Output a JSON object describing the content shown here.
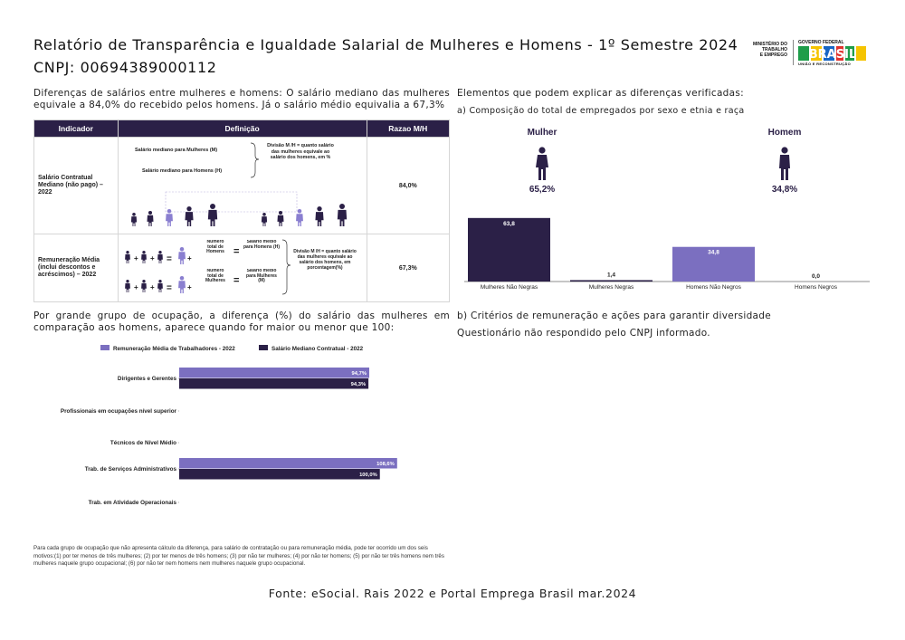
{
  "header": {
    "title_line1": "Relatório de Transparência e Igualdade Salarial de Mulheres e Homens - 1º Semestre 2024",
    "title_line2": "CNPJ: 00694389000112",
    "ministry": [
      "MINISTÉRIO DO",
      "TRABALHO",
      "E EMPREGO"
    ],
    "gov_federal": "GOVERNO FEDERAL",
    "gov_brasil": "BRASIL",
    "gov_union": "UNIÃO E RECONSTRUÇÃO"
  },
  "left_intro": "Diferenças de salários entre mulheres e homens: O salário mediano das mulheres equivale a 84,0% do recebido pelos homens. Já o salário médio equivalia a 67,3%",
  "indicator_table": {
    "headers": [
      "Indicador",
      "Definição",
      "Razao M/H"
    ],
    "rows": [
      {
        "name": "Salário Contratual Mediano (não pago) – 2022",
        "ratio": "84,0%",
        "def_women": "Salário mediano para Mulheres (M)",
        "def_men": "Salário mediano para Homens (H)",
        "def_division": "Divisão M /H = quanto salário das mulheres equivale ao salário dos homens, em %"
      },
      {
        "name": "Remuneração Média (inclui descontos e acréscimos) – 2022",
        "ratio": "67,3%",
        "def_total_men": "Número total de Homens",
        "def_total_women": "Número total de Mulheres",
        "def_avg_men": "Salário médio para Homens (H)",
        "def_avg_women": "Salário médio para Mulheres (M)",
        "def_division": "Divisão M /H = quanto salário das mulheres equivale ao salário dos homens, em porcentagem(%)"
      }
    ]
  },
  "right_intro": "Elementos que podem explicar as diferenças verificadas:",
  "right_sub_a": "a) Composição do total de empregados por sexo e etnia e raça",
  "composition": {
    "women_label": "Mulher",
    "women_pct": "65,2%",
    "men_label": "Homem",
    "men_pct": "34,8%",
    "color_women": "#2b2047",
    "color_men": "#2b2047"
  },
  "occ_intro": "Por grande grupo de ocupação, a diferença (%) do salário das mulheres em comparação aos homens, aparece quando for maior ou menor que 100:",
  "right_sub_b": "b) Critérios de remuneração e ações para garantir diversidade",
  "questionario": "Questionário não respondido pelo CNPJ informado.",
  "footnote": "Para cada grupo de ocupação que não apresenta cálculo da diferença, para salário de contratação ou para remuneração média, pode ter ocorrido um dos seis motivos:(1) por ter menos de três mulheres; (2) por ter menos de três homens; (3) por não ter mulheres; (4) por não ter homens; (5) por não ter três homens nem três mulheres naquele grupo ocupacional; (6) por não ter nem homens nem mulheres naquele grupo ocupacional.",
  "source": "Fonte: eSocial. Rais 2022 e Portal Emprega Brasil mar.2024",
  "chart_data": [
    {
      "type": "bar",
      "categories": [
        "Mulheres Não Negras",
        "Mulheres Negras",
        "Homens Não Negros",
        "Homens Negros"
      ],
      "values": [
        63.8,
        1.4,
        34.8,
        0.0
      ],
      "value_labels": [
        "63,8",
        "1,4",
        "34,8",
        "0,0"
      ],
      "colors": [
        "#2b2047",
        "#2b2047",
        "#7b6fc0",
        "#7b6fc0"
      ],
      "ylim": [
        0,
        70
      ]
    },
    {
      "type": "bar",
      "orientation": "horizontal",
      "categories": [
        "Dirigentes e Gerentes",
        "Profissionais em ocupações nível superior",
        "Técnicos de Nível Médio",
        "Trab. de Serviços Administrativos",
        "Trab. em Atividade Operacionais"
      ],
      "series": [
        {
          "name": "Remuneração Média de Trabalhadores - 2022",
          "values": [
            94.7,
            null,
            null,
            108.6,
            null
          ],
          "labels": [
            "94,7%",
            "",
            "",
            "108,6%",
            ""
          ],
          "color": "#7b6fc0"
        },
        {
          "name": "Salário Mediano Contratual - 2022",
          "values": [
            94.3,
            null,
            null,
            100.0,
            null
          ],
          "labels": [
            "94,3%",
            "",
            "",
            "100,0%",
            ""
          ],
          "color": "#2b2047"
        }
      ],
      "xlim": [
        0,
        115
      ]
    }
  ]
}
